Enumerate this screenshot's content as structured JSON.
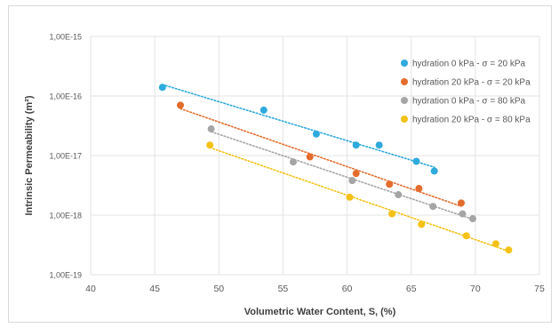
{
  "chart_data": {
    "type": "scatter",
    "xlabel": "Volumetric Water Content, S, (%)",
    "ylabel": "Intrinsic Permeability (m²)",
    "xlim": [
      40,
      75
    ],
    "ylim": [
      1e-19,
      1e-15
    ],
    "y_scale": "log",
    "grid": true,
    "legend_position": "top-right",
    "x_ticks": [
      "40",
      "45",
      "50",
      "55",
      "60",
      "65",
      "70",
      "75"
    ],
    "y_ticks": [
      "1,00E-19",
      "1,00E-18",
      "1,00E-17",
      "1,00E-16",
      "1,00E-15"
    ],
    "series": [
      {
        "name": "hydration 0 kPa - σ = 20 kPa",
        "color": "#2eaadc",
        "trendline": "dotted",
        "points": [
          [
            45.6,
            1.4e-16
          ],
          [
            53.5,
            5.8e-17
          ],
          [
            57.6,
            2.3e-17
          ],
          [
            60.7,
            1.5e-17
          ],
          [
            62.5,
            1.5e-17
          ],
          [
            65.4,
            8e-18
          ],
          [
            66.8,
            5.5e-18
          ]
        ]
      },
      {
        "name": "hydration 20 kPa - σ = 20 kPa",
        "color": "#e46c2c",
        "trendline": "dotted",
        "points": [
          [
            47.0,
            7e-17
          ],
          [
            57.1,
            9.5e-18
          ],
          [
            60.7,
            5e-18
          ],
          [
            63.3,
            3.3e-18
          ],
          [
            65.6,
            2.8e-18
          ],
          [
            68.9,
            1.6e-18
          ]
        ]
      },
      {
        "name": "hydration 0 kPa - σ = 80 kPa",
        "color": "#a5a5a5",
        "trendline": "dotted",
        "points": [
          [
            49.4,
            2.8e-17
          ],
          [
            55.8,
            7.8e-18
          ],
          [
            60.4,
            3.8e-18
          ],
          [
            64.0,
            2.2e-18
          ],
          [
            66.7,
            1.4e-18
          ],
          [
            69.0,
            1.05e-18
          ],
          [
            69.8,
            8.7e-19
          ]
        ]
      },
      {
        "name": "hydration 20 kPa - σ = 80 kPa",
        "color": "#f5c117",
        "trendline": "dotted",
        "points": [
          [
            49.3,
            1.5e-17
          ],
          [
            60.2,
            2e-18
          ],
          [
            63.5,
            1.05e-18
          ],
          [
            65.8,
            7e-19
          ],
          [
            69.3,
            4.5e-19
          ],
          [
            71.6,
            3.3e-19
          ],
          [
            72.6,
            2.6e-19
          ]
        ]
      }
    ]
  }
}
